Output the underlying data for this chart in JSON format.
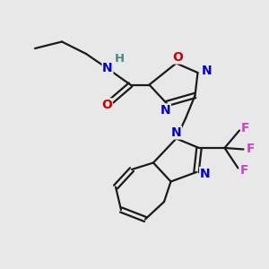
{
  "bg_color": "#e8e8e8",
  "atom_colors": {
    "N": "#0000cc",
    "O": "#cc0000",
    "F": "#cc44cc",
    "H": "#448888"
  },
  "bond_color": "#1a1a1a",
  "figsize": [
    3.0,
    3.0
  ],
  "dpi": 100
}
